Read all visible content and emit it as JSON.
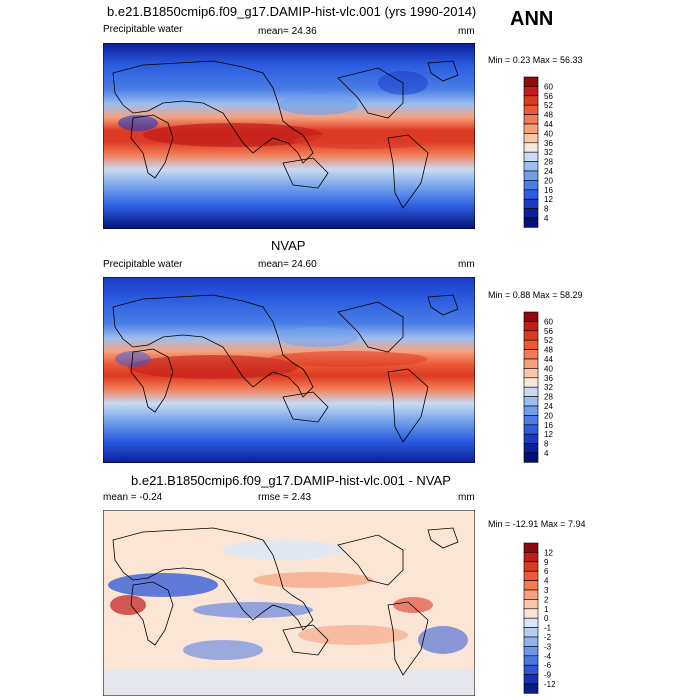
{
  "main_title": "b.e21.B1850cmip6.f09_g17.DAMIP-hist-vlc.001 (yrs 1990-2014)",
  "season": "ANN",
  "panels": [
    {
      "title": "",
      "left_label": "Precipitable water",
      "center_label": "mean=  24.36",
      "units": "mm",
      "minmax": "Min =   0.23 Max =   56.33",
      "palette": "abs",
      "levels": [
        "60",
        "56",
        "52",
        "48",
        "44",
        "40",
        "36",
        "32",
        "28",
        "24",
        "20",
        "16",
        "12",
        "8",
        "4"
      ],
      "colors": [
        "#8e0a0f",
        "#c01d1b",
        "#dc3a24",
        "#ec5a35",
        "#f27c55",
        "#f6a17d",
        "#f9c6ab",
        "#f6e8de",
        "#c9daf3",
        "#9ebeee",
        "#6f9fe9",
        "#4a7ee6",
        "#2c5ce0",
        "#1a39c7",
        "#0c1e9a",
        "#051275"
      ]
    },
    {
      "title": "NVAP",
      "left_label": "Precipitable water",
      "center_label": "mean=  24.60",
      "units": "mm",
      "minmax": "Min =   0.88 Max =   58.29",
      "palette": "abs",
      "levels": [
        "60",
        "56",
        "52",
        "48",
        "44",
        "40",
        "36",
        "32",
        "28",
        "24",
        "20",
        "16",
        "12",
        "8",
        "4"
      ],
      "colors": [
        "#8e0a0f",
        "#c01d1b",
        "#dc3a24",
        "#ec5a35",
        "#f27c55",
        "#f6a17d",
        "#f9c6ab",
        "#f6e8de",
        "#c9daf3",
        "#9ebeee",
        "#6f9fe9",
        "#4a7ee6",
        "#2c5ce0",
        "#1a39c7",
        "#0c1e9a",
        "#051275"
      ]
    },
    {
      "title": "b.e21.B1850cmip6.f09_g17.DAMIP-hist-vlc.001 - NVAP",
      "left_label": "mean =  -0.24",
      "center_label": "rmse =   2.43",
      "units": "mm",
      "minmax": "Min = -12.91 Max =   7.94",
      "palette": "diff",
      "levels": [
        "12",
        "9",
        "6",
        "4",
        "3",
        "2",
        "1",
        "0",
        "-1",
        "-2",
        "-3",
        "-4",
        "-6",
        "-9",
        "-12"
      ],
      "colors": [
        "#8e0a0f",
        "#c01d1b",
        "#dc3a24",
        "#ec5a35",
        "#f27c55",
        "#f6a17d",
        "#f9c6ab",
        "#fbe6d6",
        "#dbe7f6",
        "#b7cdef",
        "#93b2ea",
        "#6e95e6",
        "#4c76e2",
        "#2c55d8",
        "#1532b4",
        "#071c88"
      ]
    }
  ]
}
